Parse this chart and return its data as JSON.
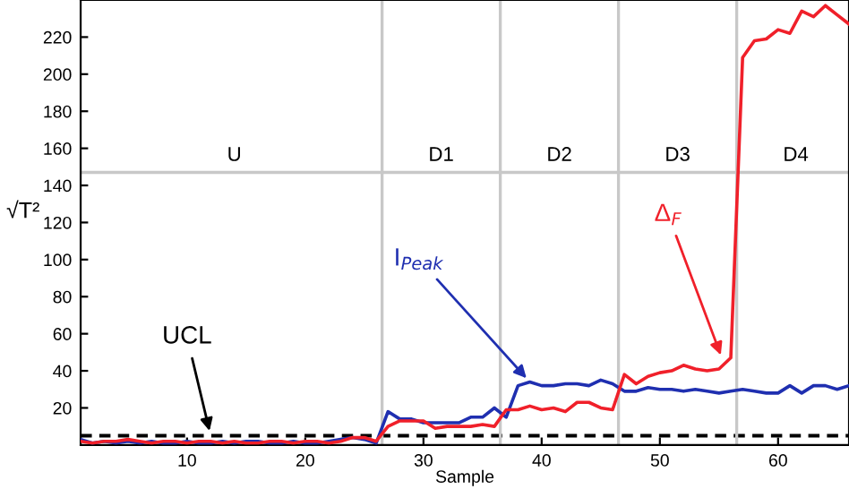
{
  "chart_data": {
    "type": "line",
    "xlabel": "Sample",
    "ylabel": "√T²",
    "x": [
      1,
      2,
      3,
      4,
      5,
      6,
      7,
      8,
      9,
      10,
      11,
      12,
      13,
      14,
      15,
      16,
      17,
      18,
      19,
      20,
      21,
      22,
      23,
      24,
      25,
      26,
      27,
      28,
      29,
      30,
      31,
      32,
      33,
      34,
      35,
      36,
      37,
      38,
      39,
      40,
      41,
      42,
      43,
      44,
      45,
      46,
      47,
      48,
      49,
      50,
      51,
      52,
      53,
      54,
      55,
      56,
      57,
      58,
      59,
      60,
      61,
      62,
      63,
      64,
      65,
      66
    ],
    "series": [
      {
        "color": "#1f2fb0",
        "values": [
          3,
          1,
          2,
          1,
          2,
          1,
          2,
          1,
          1,
          2,
          1,
          1,
          2,
          1,
          2,
          2,
          1,
          1,
          2,
          1,
          1,
          2,
          3,
          4,
          3,
          1,
          18,
          14,
          14,
          12,
          12,
          12,
          12,
          15,
          15,
          20,
          15,
          32,
          34,
          32,
          32,
          33,
          33,
          32,
          35,
          33,
          29,
          29,
          31,
          30,
          30,
          29,
          30,
          29,
          28,
          29,
          30,
          29,
          28,
          28,
          32,
          28,
          32,
          32,
          30,
          32
        ]
      },
      {
        "color": "#f0202a",
        "values": [
          2,
          1,
          2,
          2,
          3,
          2,
          1,
          2,
          2,
          1,
          2,
          2,
          1,
          2,
          1,
          1,
          2,
          2,
          1,
          2,
          2,
          1,
          2,
          4,
          4,
          2,
          10,
          13,
          13,
          13,
          9,
          10,
          10,
          10,
          11,
          10,
          19,
          19,
          21,
          19,
          20,
          18,
          23,
          23,
          20,
          19,
          38,
          33,
          37,
          39,
          40,
          43,
          41,
          40,
          41,
          47,
          209,
          218,
          219,
          224,
          222,
          234,
          231,
          237,
          232,
          227
        ]
      }
    ],
    "xlim": [
      1,
      66
    ],
    "ylim": [
      0,
      240
    ],
    "xticks": [
      10,
      20,
      30,
      40,
      50,
      60
    ],
    "yticks": [
      20,
      40,
      60,
      80,
      100,
      120,
      140,
      160,
      180,
      200,
      220
    ],
    "grid": false,
    "ref_lines": [
      {
        "axis": "y",
        "value": 5,
        "color": "#000000",
        "line_style": "dashed"
      },
      {
        "axis": "y",
        "value": 147,
        "color": "#c8c8c8",
        "line_style": "solid"
      },
      {
        "axis": "x",
        "value": 26.5,
        "color": "#c8c8c8",
        "line_style": "solid"
      },
      {
        "axis": "x",
        "value": 36.5,
        "color": "#c8c8c8",
        "line_style": "solid"
      },
      {
        "axis": "x",
        "value": 46.5,
        "color": "#c8c8c8",
        "line_style": "solid"
      },
      {
        "axis": "x",
        "value": 56.5,
        "color": "#c8c8c8",
        "line_style": "solid"
      }
    ],
    "annotations": [
      {
        "text": "U",
        "x": 14,
        "y": 151
      },
      {
        "text": "D1",
        "x": 31.5,
        "y": 151
      },
      {
        "text": "D2",
        "x": 41.5,
        "y": 151
      },
      {
        "text": "D3",
        "x": 51.5,
        "y": 151
      },
      {
        "text": "D4",
        "x": 61.5,
        "y": 151
      },
      {
        "text": "UCL",
        "x": 12,
        "y": 5
      },
      {
        "text": "I$_{Peak}$",
        "x": 39,
        "y": 34
      },
      {
        "text": "Δ$_{F}$",
        "x": 55.3,
        "y": 46
      }
    ]
  }
}
